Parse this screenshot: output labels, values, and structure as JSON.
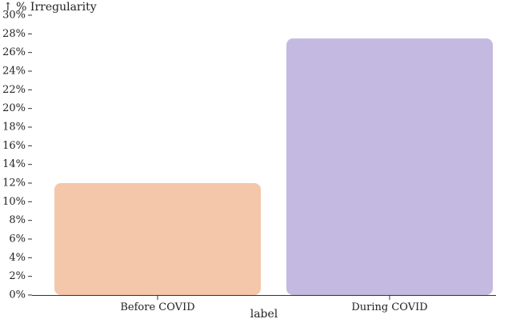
{
  "chart_data": {
    "type": "bar",
    "ylabel": "↑ % Irregularity",
    "xlabel": "label",
    "categories": [
      "Before COVID",
      "During COVID"
    ],
    "values": [
      12,
      27.5
    ],
    "ylim": [
      0,
      30
    ],
    "yticks": [
      0,
      2,
      4,
      6,
      8,
      10,
      12,
      14,
      16,
      18,
      20,
      22,
      24,
      26,
      28,
      30
    ],
    "ytick_suffix": "%",
    "colors": [
      "#f4c7aa",
      "#c4b9e0"
    ],
    "grid": false,
    "legend": "none"
  }
}
